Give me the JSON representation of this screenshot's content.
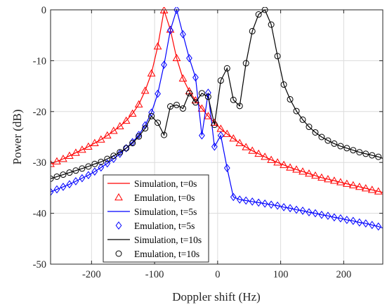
{
  "chart_data": {
    "type": "line",
    "title": "",
    "xlabel": "Doppler shift (Hz)",
    "ylabel": "Power (dB)",
    "xlim": [
      -265,
      262
    ],
    "ylim": [
      -50,
      0
    ],
    "xticks": [
      -200,
      -100,
      0,
      100,
      200
    ],
    "yticks": [
      -50,
      -40,
      -30,
      -20,
      -10,
      0
    ],
    "grid": true,
    "legend_position": "bottom-left",
    "legend": [
      "Simulation, t=0s",
      "Emulation, t=0s",
      "Simulation, t=5s",
      "Emulation, t=5s",
      "Simulation, t=10s",
      "Emulation, t=10s"
    ],
    "series": [
      {
        "name": "Simulation, t=0s",
        "kind": "line",
        "color": "#ff0000",
        "x": [
          -265,
          -255,
          -245,
          -235,
          -225,
          -215,
          -205,
          -195,
          -185,
          -175,
          -165,
          -155,
          -145,
          -135,
          -125,
          -115,
          -105,
          -95,
          -85,
          -75,
          -65,
          -55,
          -45,
          -35,
          -25,
          -15,
          -5,
          5,
          15,
          25,
          35,
          45,
          55,
          65,
          75,
          85,
          95,
          105,
          115,
          125,
          135,
          145,
          155,
          165,
          175,
          185,
          195,
          205,
          215,
          225,
          235,
          245,
          255,
          262
        ],
        "y": [
          -30.3,
          -29.8,
          -29.3,
          -28.7,
          -28.1,
          -27.5,
          -26.9,
          -26.2,
          -25.5,
          -24.7,
          -23.8,
          -22.9,
          -21.8,
          -20.4,
          -18.6,
          -15.9,
          -12.5,
          -7.2,
          -0.1,
          -3.9,
          -9.5,
          -13.5,
          -16.0,
          -17.8,
          -19.4,
          -20.9,
          -22.2,
          -23.4,
          -24.4,
          -25.3,
          -26.2,
          -27.0,
          -27.7,
          -28.3,
          -28.9,
          -29.5,
          -30.0,
          -30.5,
          -31.0,
          -31.4,
          -31.8,
          -32.2,
          -32.6,
          -33.0,
          -33.3,
          -33.6,
          -33.9,
          -34.2,
          -34.5,
          -34.8,
          -35.1,
          -35.4,
          -35.7,
          -35.9
        ]
      },
      {
        "name": "Emulation, t=0s",
        "kind": "markers",
        "marker": "triangle",
        "color": "#ff0000",
        "x": [
          -265,
          -255,
          -245,
          -235,
          -225,
          -215,
          -205,
          -195,
          -185,
          -175,
          -165,
          -155,
          -145,
          -135,
          -125,
          -115,
          -105,
          -95,
          -85,
          -75,
          -65,
          -55,
          -45,
          -35,
          -25,
          -15,
          -5,
          5,
          15,
          25,
          35,
          45,
          55,
          65,
          75,
          85,
          95,
          105,
          115,
          125,
          135,
          145,
          155,
          165,
          175,
          185,
          195,
          205,
          215,
          225,
          235,
          245,
          255
        ],
        "y": [
          -30.3,
          -29.8,
          -29.3,
          -28.7,
          -28.1,
          -27.5,
          -26.9,
          -26.2,
          -25.5,
          -24.7,
          -23.8,
          -22.9,
          -21.8,
          -20.4,
          -18.6,
          -15.9,
          -12.5,
          -7.2,
          -0.1,
          -3.9,
          -9.5,
          -13.5,
          -16.0,
          -17.8,
          -19.4,
          -20.9,
          -22.2,
          -23.4,
          -24.4,
          -25.3,
          -26.2,
          -27.0,
          -27.7,
          -28.3,
          -28.9,
          -29.5,
          -30.0,
          -30.5,
          -31.0,
          -31.4,
          -31.8,
          -32.2,
          -32.6,
          -33.0,
          -33.3,
          -33.6,
          -33.9,
          -34.2,
          -34.5,
          -34.8,
          -35.1,
          -35.4,
          -35.7
        ]
      },
      {
        "name": "Simulation, t=5s",
        "kind": "line",
        "color": "#0000ff",
        "x": [
          -265,
          -255,
          -245,
          -235,
          -225,
          -215,
          -205,
          -195,
          -185,
          -175,
          -165,
          -155,
          -145,
          -135,
          -125,
          -115,
          -105,
          -95,
          -85,
          -75,
          -65,
          -55,
          -45,
          -35,
          -25,
          -15,
          -5,
          5,
          15,
          25,
          35,
          45,
          55,
          65,
          75,
          85,
          95,
          105,
          115,
          125,
          135,
          145,
          155,
          165,
          175,
          185,
          195,
          205,
          215,
          225,
          235,
          245,
          255,
          262
        ],
        "y": [
          -35.8,
          -35.3,
          -34.8,
          -34.3,
          -33.7,
          -33.1,
          -32.5,
          -31.8,
          -31.0,
          -30.2,
          -29.3,
          -28.3,
          -27.2,
          -26.0,
          -24.6,
          -22.7,
          -20.2,
          -16.5,
          -10.8,
          -4.0,
          0,
          -4.8,
          -9.5,
          -13.3,
          -24.7,
          -16.3,
          -26.9,
          -24.7,
          -31.1,
          -36.8,
          -37.3,
          -37.5,
          -37.7,
          -37.9,
          -38.1,
          -38.3,
          -38.5,
          -38.8,
          -39.0,
          -39.3,
          -39.5,
          -39.8,
          -40.0,
          -40.3,
          -40.5,
          -40.8,
          -41.0,
          -41.3,
          -41.5,
          -41.8,
          -42.0,
          -42.3,
          -42.6,
          -42.9
        ]
      },
      {
        "name": "Emulation, t=5s",
        "kind": "markers",
        "marker": "diamond",
        "color": "#0000ff",
        "x": [
          -265,
          -255,
          -245,
          -235,
          -225,
          -215,
          -205,
          -195,
          -185,
          -175,
          -165,
          -155,
          -145,
          -135,
          -125,
          -115,
          -105,
          -95,
          -85,
          -75,
          -65,
          -55,
          -45,
          -35,
          -25,
          -15,
          -5,
          5,
          15,
          25,
          35,
          45,
          55,
          65,
          75,
          85,
          95,
          105,
          115,
          125,
          135,
          145,
          155,
          165,
          175,
          185,
          195,
          205,
          215,
          225,
          235,
          245,
          255
        ],
        "y": [
          -35.8,
          -35.3,
          -34.8,
          -34.3,
          -33.7,
          -33.1,
          -32.5,
          -31.8,
          -31.0,
          -30.2,
          -29.3,
          -28.3,
          -27.2,
          -26.0,
          -24.6,
          -22.7,
          -20.2,
          -16.5,
          -10.8,
          -4.0,
          0,
          -4.8,
          -9.5,
          -13.3,
          -24.7,
          -16.3,
          -26.9,
          -24.7,
          -31.1,
          -36.8,
          -37.3,
          -37.5,
          -37.7,
          -37.9,
          -38.1,
          -38.3,
          -38.5,
          -38.8,
          -39.0,
          -39.3,
          -39.5,
          -39.8,
          -40.0,
          -40.3,
          -40.5,
          -40.8,
          -41.0,
          -41.3,
          -41.5,
          -41.8,
          -42.0,
          -42.3,
          -42.6
        ]
      },
      {
        "name": "Simulation, t=10s",
        "kind": "line",
        "color": "#000000",
        "x": [
          -265,
          -255,
          -245,
          -235,
          -225,
          -215,
          -205,
          -195,
          -185,
          -175,
          -165,
          -155,
          -145,
          -135,
          -125,
          -115,
          -105,
          -95,
          -85,
          -75,
          -65,
          -55,
          -45,
          -35,
          -25,
          -15,
          -5,
          5,
          15,
          25,
          35,
          45,
          55,
          65,
          75,
          85,
          95,
          105,
          115,
          125,
          135,
          145,
          155,
          165,
          175,
          185,
          195,
          205,
          215,
          225,
          235,
          245,
          255,
          262
        ],
        "y": [
          -33.2,
          -32.8,
          -32.4,
          -32.0,
          -31.6,
          -31.2,
          -30.8,
          -30.3,
          -29.9,
          -29.3,
          -28.7,
          -28.0,
          -27.2,
          -26.2,
          -24.9,
          -23.3,
          -20.9,
          -22.2,
          -24.6,
          -19.0,
          -18.7,
          -19.4,
          -16.4,
          -18.2,
          -16.4,
          -17.1,
          -22.6,
          -13.9,
          -11.5,
          -17.7,
          -18.9,
          -10.5,
          -4.2,
          -0.9,
          0,
          -2.9,
          -9.1,
          -14.7,
          -17.6,
          -19.9,
          -21.6,
          -23.0,
          -24.1,
          -25.0,
          -25.7,
          -26.3,
          -26.8,
          -27.2,
          -27.6,
          -28.0,
          -28.3,
          -28.6,
          -28.9,
          -29.2
        ]
      },
      {
        "name": "Emulation, t=10s",
        "kind": "markers",
        "marker": "circle",
        "color": "#000000",
        "x": [
          -265,
          -255,
          -245,
          -235,
          -225,
          -215,
          -205,
          -195,
          -185,
          -175,
          -165,
          -155,
          -145,
          -135,
          -125,
          -115,
          -105,
          -95,
          -85,
          -75,
          -65,
          -55,
          -45,
          -35,
          -25,
          -15,
          -5,
          5,
          15,
          25,
          35,
          45,
          55,
          65,
          75,
          85,
          95,
          105,
          115,
          125,
          135,
          145,
          155,
          165,
          175,
          185,
          195,
          205,
          215,
          225,
          235,
          245,
          255
        ],
        "y": [
          -33.2,
          -32.8,
          -32.4,
          -32.0,
          -31.6,
          -31.2,
          -30.8,
          -30.3,
          -29.9,
          -29.3,
          -28.7,
          -28.0,
          -27.2,
          -26.2,
          -24.9,
          -23.3,
          -20.9,
          -22.2,
          -24.6,
          -19.0,
          -18.7,
          -19.4,
          -16.4,
          -18.2,
          -16.4,
          -17.1,
          -22.6,
          -13.9,
          -11.5,
          -17.7,
          -18.9,
          -10.5,
          -4.2,
          -0.9,
          0,
          -2.9,
          -9.1,
          -14.7,
          -17.6,
          -19.9,
          -21.6,
          -23.0,
          -24.1,
          -25.0,
          -25.7,
          -26.3,
          -26.8,
          -27.2,
          -27.6,
          -28.0,
          -28.3,
          -28.6,
          -28.9
        ]
      }
    ]
  }
}
